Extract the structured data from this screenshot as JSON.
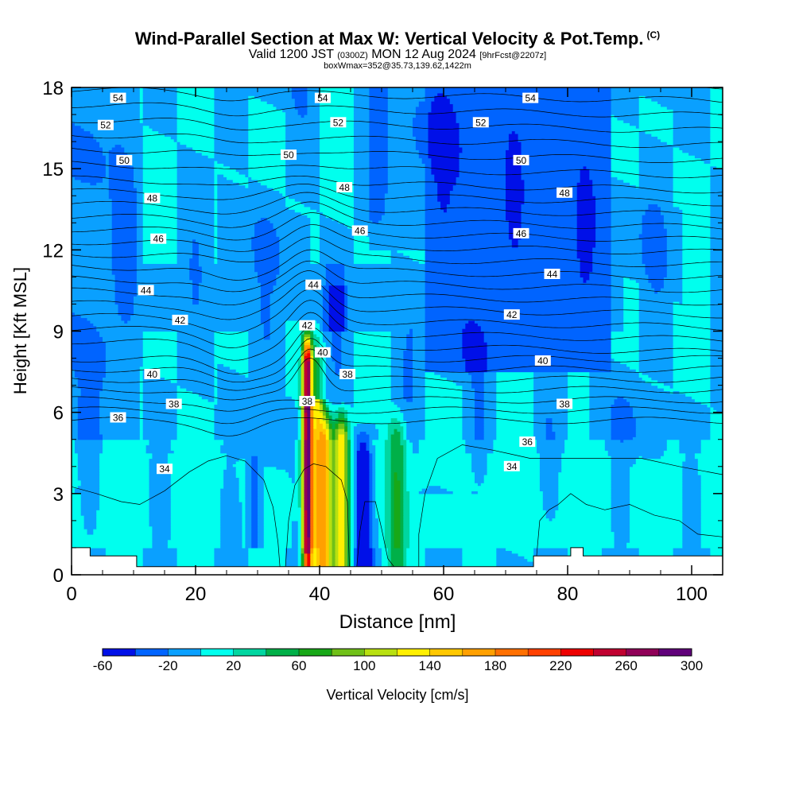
{
  "title": {
    "main": "Wind-Parallel Section at Max W: Vertical Velocity & Pot.Temp.",
    "copyright": "(C)",
    "valid_prefix": "Valid 1200 JST",
    "valid_zulu": "(0300Z)",
    "valid_date": "MON 12 Aug 2024",
    "forecast": "[9hrFcst@2207z]",
    "box_info": "boxWmax=352@35.73,139.62,1422m"
  },
  "chart_data": {
    "type": "heatmap",
    "xlabel": "Distance [nm]",
    "ylabel": "Height [Kft MSL]",
    "xlim": [
      0,
      105
    ],
    "ylim": [
      0,
      18
    ],
    "x_ticks": [
      0,
      20,
      40,
      60,
      80,
      100
    ],
    "y_ticks": [
      0,
      3,
      6,
      9,
      12,
      15,
      18
    ],
    "colorbar": {
      "label": "Vertical Velocity [cm/s]",
      "tick_labels": [
        "-60",
        "-20",
        "20",
        "60",
        "100",
        "140",
        "180",
        "220",
        "260",
        "300"
      ],
      "levels": [
        -60,
        -40,
        -20,
        0,
        20,
        40,
        60,
        80,
        100,
        120,
        140,
        160,
        180,
        200,
        220,
        240,
        260,
        280,
        300
      ],
      "colors": [
        "#0010e8",
        "#0064ff",
        "#0aa0ff",
        "#00ffee",
        "#00d6a0",
        "#00b048",
        "#18a818",
        "#70c018",
        "#b8e010",
        "#fff000",
        "#ffc800",
        "#ffa000",
        "#ff7000",
        "#ff4000",
        "#ee0000",
        "#c00030",
        "#900058",
        "#60007a"
      ]
    },
    "background_level_cm_s": 0,
    "updraft_core": {
      "x_nm": 38,
      "top_kft": 8.8,
      "max_cm_s": 240
    },
    "downdraft_core": {
      "x_nm": 47,
      "min_cm_s": -60
    },
    "terrain_kft": [
      [
        0,
        1
      ],
      [
        3,
        1
      ],
      [
        3,
        0.7
      ],
      [
        10.5,
        0.7
      ],
      [
        10.5,
        0.3
      ],
      [
        74.5,
        0.3
      ],
      [
        74.5,
        0.7
      ],
      [
        80.5,
        0.7
      ],
      [
        80.5,
        1
      ],
      [
        82.5,
        1
      ],
      [
        82.5,
        0.7
      ],
      [
        105,
        0.7
      ]
    ],
    "isentropes": {
      "variable": "potential temperature",
      "levels": [
        34,
        36,
        38,
        40,
        42,
        44,
        46,
        48,
        50,
        52,
        54
      ],
      "labels": [
        {
          "text": "54",
          "x": 7.5,
          "y": 17.6
        },
        {
          "text": "54",
          "x": 40.5,
          "y": 17.6
        },
        {
          "text": "54",
          "x": 74,
          "y": 17.6
        },
        {
          "text": "52",
          "x": 5.5,
          "y": 16.6
        },
        {
          "text": "52",
          "x": 43,
          "y": 16.7
        },
        {
          "text": "52",
          "x": 66,
          "y": 16.7
        },
        {
          "text": "50",
          "x": 8.5,
          "y": 15.3
        },
        {
          "text": "50",
          "x": 35,
          "y": 15.5
        },
        {
          "text": "50",
          "x": 72.5,
          "y": 15.3
        },
        {
          "text": "48",
          "x": 13,
          "y": 13.9
        },
        {
          "text": "48",
          "x": 44,
          "y": 14.3
        },
        {
          "text": "48",
          "x": 79.5,
          "y": 14.1
        },
        {
          "text": "46",
          "x": 14,
          "y": 12.4
        },
        {
          "text": "46",
          "x": 46.5,
          "y": 12.7
        },
        {
          "text": "46",
          "x": 72.5,
          "y": 12.6
        },
        {
          "text": "44",
          "x": 12,
          "y": 10.5
        },
        {
          "text": "44",
          "x": 39,
          "y": 10.7
        },
        {
          "text": "44",
          "x": 77.5,
          "y": 11.1
        },
        {
          "text": "42",
          "x": 17.5,
          "y": 9.4
        },
        {
          "text": "42",
          "x": 38,
          "y": 9.2
        },
        {
          "text": "42",
          "x": 71,
          "y": 9.6
        },
        {
          "text": "40",
          "x": 13,
          "y": 7.4
        },
        {
          "text": "40",
          "x": 40.5,
          "y": 8.2
        },
        {
          "text": "40",
          "x": 76,
          "y": 7.9
        },
        {
          "text": "38",
          "x": 16.5,
          "y": 6.3
        },
        {
          "text": "38",
          "x": 44.5,
          "y": 7.4
        },
        {
          "text": "38",
          "x": 79.5,
          "y": 6.3
        },
        {
          "text": "38",
          "x": 38,
          "y": 6.4
        },
        {
          "text": "36",
          "x": 7.5,
          "y": 5.8
        },
        {
          "text": "36",
          "x": 73.5,
          "y": 4.9
        },
        {
          "text": "34",
          "x": 15,
          "y": 3.9
        },
        {
          "text": "34",
          "x": 71,
          "y": 4.0
        }
      ]
    }
  }
}
